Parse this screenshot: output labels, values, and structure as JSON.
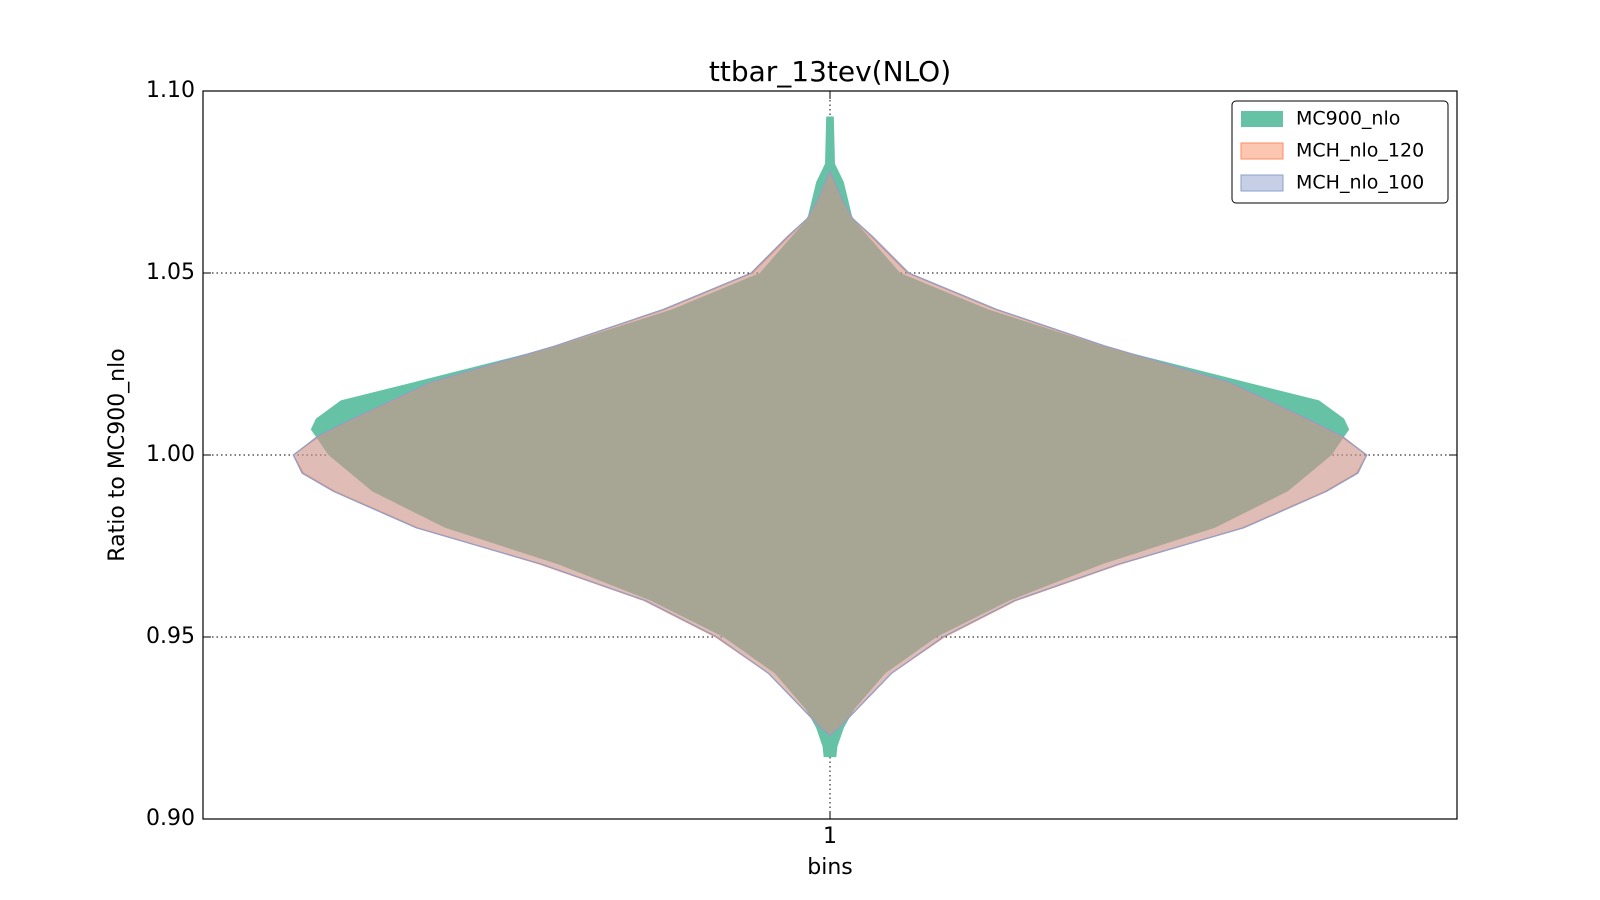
{
  "chart_data": {
    "type": "violin",
    "title": "ttbar_13tev(NLO)",
    "xlabel": "bins",
    "ylabel": "Ratio to MC900_nlo",
    "categories": [
      1
    ],
    "xlim": [
      0.5,
      1.5
    ],
    "xticks": [
      1
    ],
    "ylim": [
      0.9,
      1.1
    ],
    "yticks": [
      {
        "value": 0.9,
        "label": "0.90"
      },
      {
        "value": 0.95,
        "label": "0.95"
      },
      {
        "value": 1.0,
        "label": "1.00"
      },
      {
        "value": 1.05,
        "label": "1.05"
      },
      {
        "value": 1.1,
        "label": "1.10"
      }
    ],
    "grid": true,
    "legend": "upper right",
    "series": [
      {
        "name": "MC900_nlo",
        "color": "#66c2a5",
        "opacity": 1,
        "y": [
          1.093,
          1.08,
          1.075,
          1.065,
          1.05,
          1.04,
          1.03,
          1.02,
          1.015,
          1.01,
          1.007,
          1.005,
          1.0,
          0.99,
          0.98,
          0.97,
          0.96,
          0.95,
          0.94,
          0.93,
          0.925,
          0.92,
          0.917
        ],
        "half_width": [
          0.003,
          0.004,
          0.011,
          0.018,
          0.056,
          0.126,
          0.217,
          0.332,
          0.39,
          0.41,
          0.414,
          0.41,
          0.4,
          0.365,
          0.307,
          0.217,
          0.143,
          0.085,
          0.044,
          0.019,
          0.011,
          0.006,
          0.005
        ]
      },
      {
        "name": "MCH_nlo_120",
        "color": "#fc8d62",
        "opacity": 0.5,
        "y": [
          1.078,
          1.07,
          1.065,
          1.06,
          1.05,
          1.04,
          1.03,
          1.02,
          1.01,
          1.005,
          1.0,
          0.995,
          0.99,
          0.98,
          0.97,
          0.96,
          0.95,
          0.94,
          0.93,
          0.925,
          0.923
        ],
        "half_width": [
          0,
          0.01,
          0.018,
          0.033,
          0.062,
          0.132,
          0.218,
          0.317,
          0.379,
          0.408,
          0.428,
          0.42,
          0.395,
          0.329,
          0.231,
          0.148,
          0.091,
          0.049,
          0.021,
          0.007,
          0
        ]
      },
      {
        "name": "MCH_nlo_100",
        "color": "#8da0cb",
        "opacity": 0.25,
        "y": [
          1.078,
          1.07,
          1.065,
          1.06,
          1.05,
          1.04,
          1.03,
          1.02,
          1.01,
          1.005,
          1.0,
          0.995,
          0.99,
          0.98,
          0.97,
          0.96,
          0.95,
          0.94,
          0.93,
          0.925,
          0.923
        ],
        "half_width": [
          0,
          0.01,
          0.018,
          0.034,
          0.063,
          0.133,
          0.219,
          0.318,
          0.38,
          0.409,
          0.428,
          0.421,
          0.396,
          0.33,
          0.23,
          0.147,
          0.09,
          0.049,
          0.021,
          0.007,
          0
        ]
      }
    ]
  }
}
